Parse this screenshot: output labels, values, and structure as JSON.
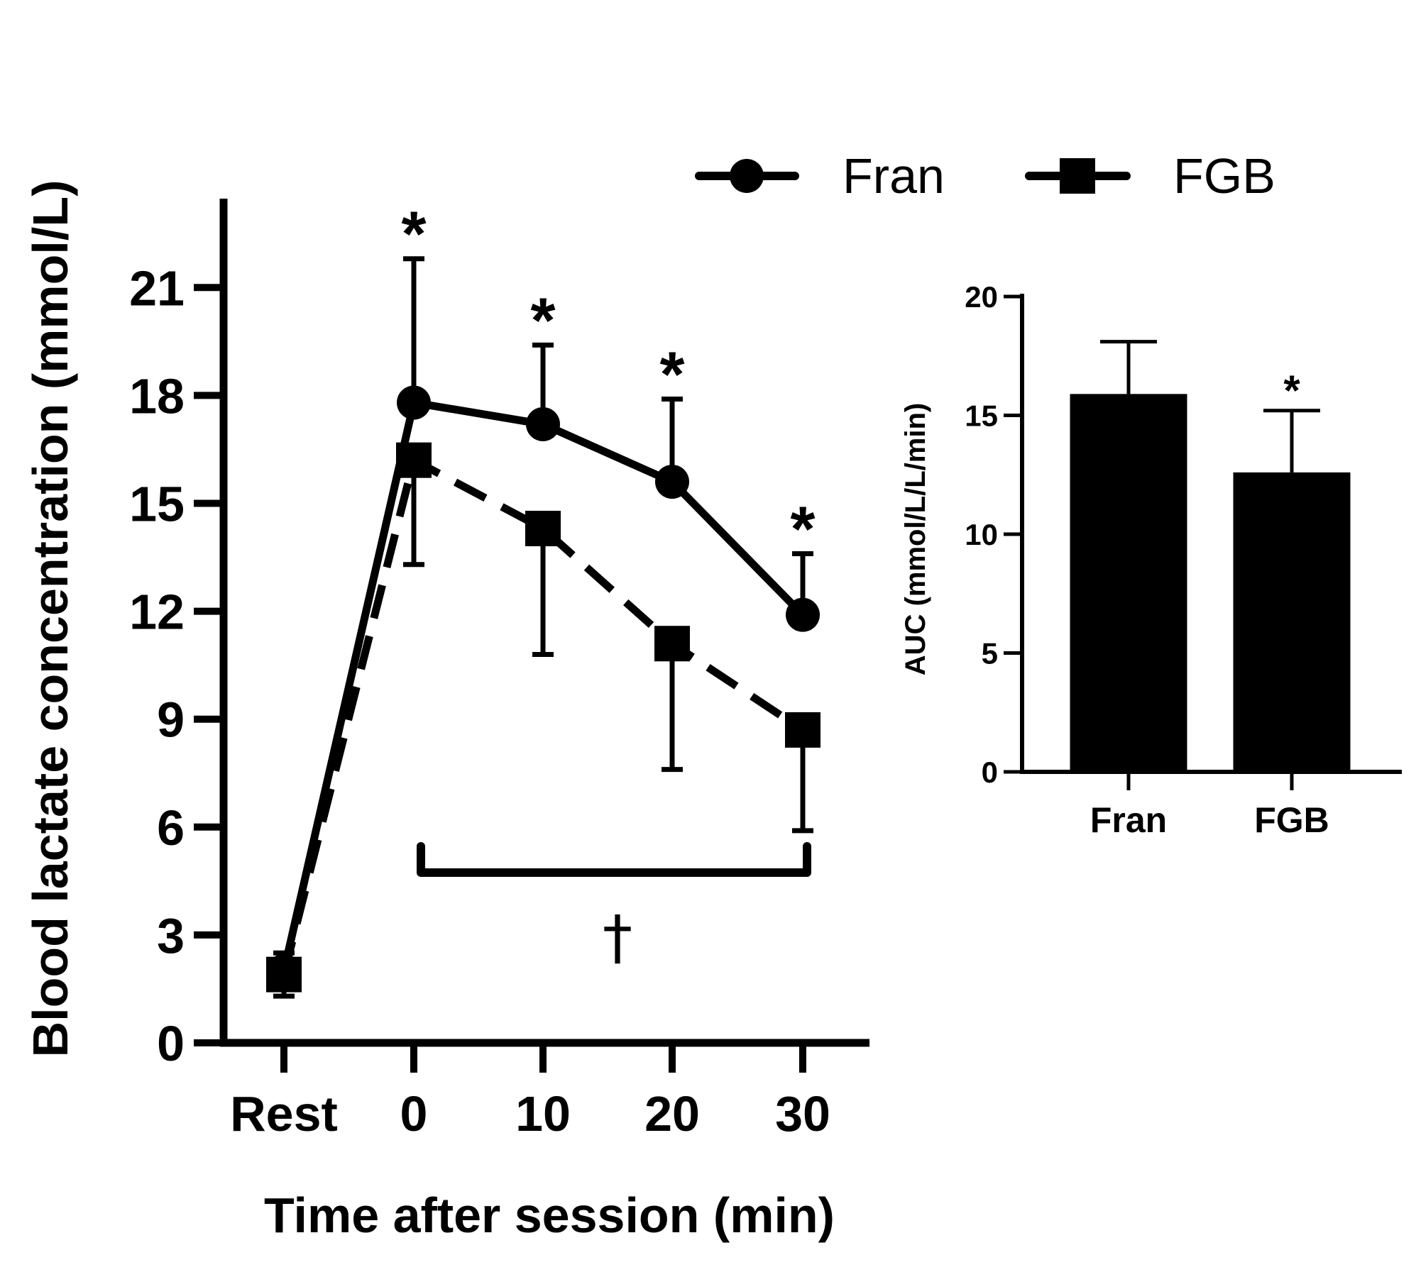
{
  "chart_data": [
    {
      "type": "line",
      "xlabel": "Time after session (min)",
      "ylabel": "Blood lactate concentration (mmol/L)",
      "categories": [
        "Rest",
        "0",
        "10",
        "20",
        "30"
      ],
      "ylim": [
        0,
        21
      ],
      "yticks": [
        "0",
        "3",
        "6",
        "9",
        "12",
        "15",
        "18",
        "21"
      ],
      "series": [
        {
          "name": "Fran",
          "marker": "circle",
          "line_style": "solid",
          "values": [
            2.0,
            17.8,
            17.2,
            15.6,
            11.9
          ],
          "error_upper": [
            2.5,
            21.8,
            19.4,
            17.9,
            13.6
          ]
        },
        {
          "name": "FGB",
          "marker": "square",
          "line_style": "dashed",
          "values": [
            1.9,
            16.2,
            14.3,
            11.1,
            8.7
          ],
          "error_lower": [
            1.3,
            13.3,
            10.8,
            7.6,
            5.9
          ]
        }
      ],
      "significance": {
        "marker": "*",
        "categories": [
          "0",
          "10",
          "20",
          "30"
        ],
        "bracket_from": "0",
        "bracket_to": "30",
        "bracket_symbol": "†"
      },
      "legend_placement": "top-right",
      "grid": false
    },
    {
      "type": "bar",
      "ylabel": "AUC (mmol/L/L/min)",
      "categories": [
        "Fran",
        "FGB"
      ],
      "values": [
        15.9,
        12.6
      ],
      "error_upper": [
        18.1,
        15.2
      ],
      "ylim": [
        0,
        20
      ],
      "yticks": [
        "0",
        "5",
        "10",
        "15",
        "20"
      ],
      "significance": {
        "marker": "*",
        "categories": [
          "FGB"
        ]
      },
      "bar_color": "#000000",
      "grid": false
    }
  ]
}
